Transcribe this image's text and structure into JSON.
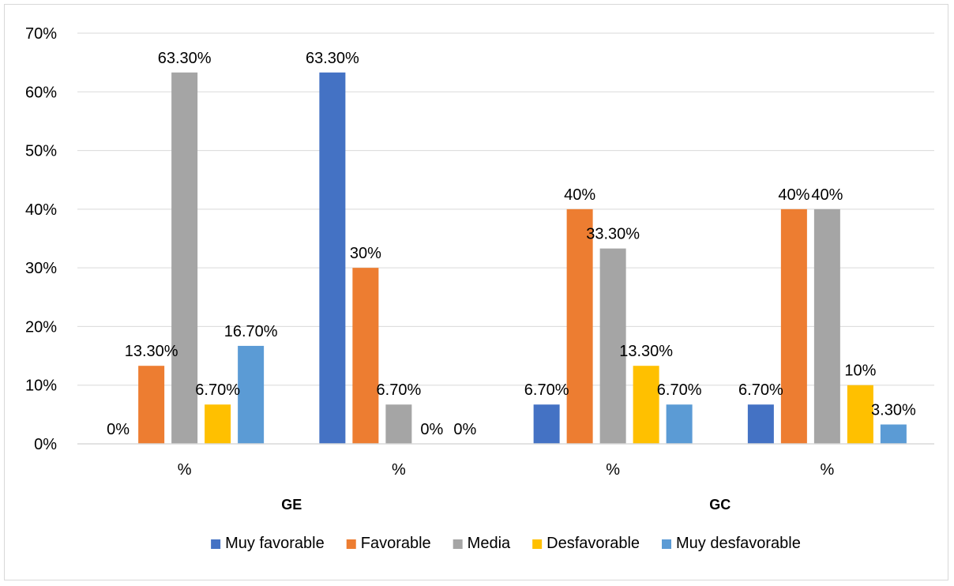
{
  "chart_data": {
    "type": "bar",
    "ylim": [
      0,
      70
    ],
    "y_ticks": [
      "0%",
      "10%",
      "20%",
      "30%",
      "40%",
      "50%",
      "60%",
      "70%"
    ],
    "grid": true,
    "legend_position": "bottom",
    "categories": [
      "%",
      "%",
      "%",
      "%"
    ],
    "groups": [
      {
        "label": "GE",
        "span": [
          0,
          1
        ]
      },
      {
        "label": "GC",
        "span": [
          2,
          3
        ]
      }
    ],
    "series": [
      {
        "name": "Muy favorable",
        "color": "#4472C4",
        "values": [
          0,
          63.3,
          6.7,
          6.7
        ],
        "labels": [
          "0%",
          "63.30%",
          "6.70%",
          "6.70%"
        ]
      },
      {
        "name": "Favorable",
        "color": "#ED7D31",
        "values": [
          13.3,
          30,
          40,
          40
        ],
        "labels": [
          "13.30%",
          "30%",
          "40%",
          "40%"
        ]
      },
      {
        "name": "Media",
        "color": "#A5A5A5",
        "values": [
          63.3,
          6.7,
          33.3,
          40
        ],
        "labels": [
          "63.30%",
          "6.70%",
          "33.30%",
          "40%"
        ]
      },
      {
        "name": "Desfavorable",
        "color": "#FFC000",
        "values": [
          6.7,
          0,
          13.3,
          10
        ],
        "labels": [
          "6.70%",
          "0%",
          "13.30%",
          "10%"
        ]
      },
      {
        "name": "Muy desfavorable",
        "color": "#5B9BD5",
        "values": [
          16.7,
          0,
          6.7,
          3.3
        ],
        "labels": [
          "16.70%",
          "0%",
          "6.70%",
          "3.30%"
        ]
      }
    ]
  }
}
